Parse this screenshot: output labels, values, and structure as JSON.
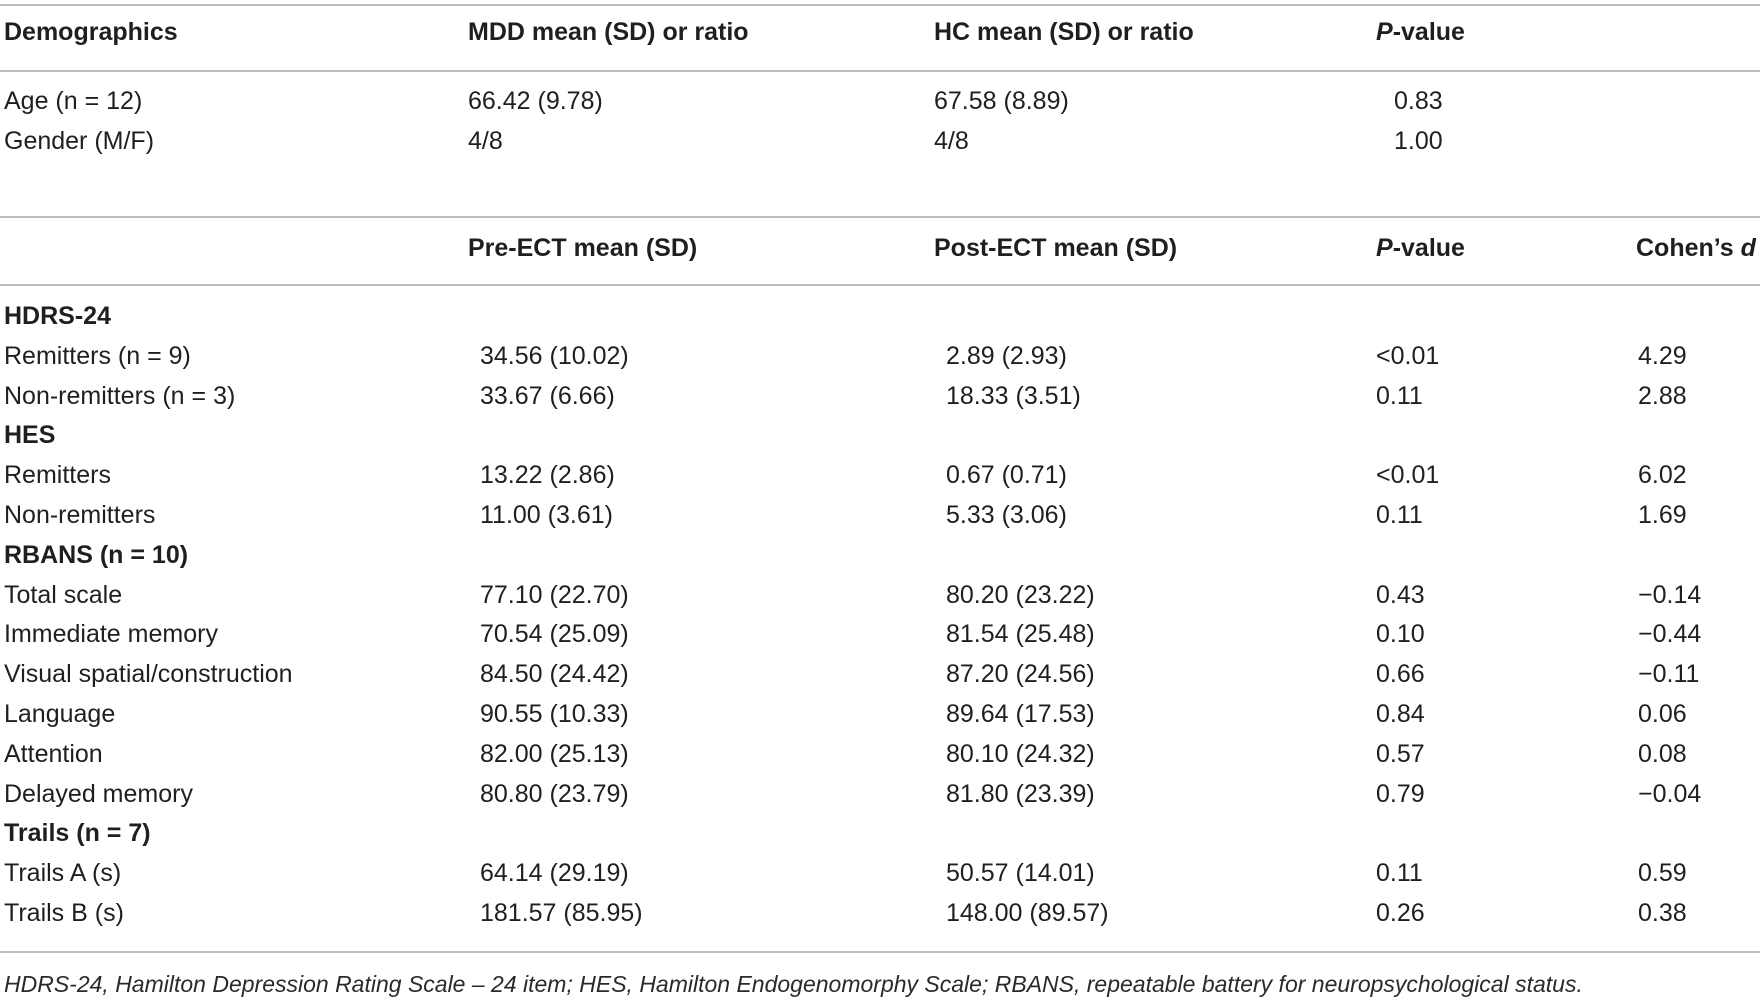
{
  "table1": {
    "header": {
      "col1": "Demographics",
      "col2": "MDD mean (SD) or ratio",
      "col3": "HC mean (SD) or ratio",
      "col4": "P-value"
    },
    "rows": [
      {
        "label": "Age (n = 12)",
        "c2": "66.42 (9.78)",
        "c3": "67.58 (8.89)",
        "c4": "0.83"
      },
      {
        "label": "Gender (M/F)",
        "c2": "4/8",
        "c3": "4/8",
        "c4": "1.00"
      }
    ]
  },
  "table2": {
    "header": {
      "col1": "",
      "col2": "Pre-ECT mean (SD)",
      "col3": "Post-ECT mean (SD)",
      "col4": "P-value",
      "col5": "Cohen's d"
    },
    "rows": [
      {
        "type": "section",
        "label": "HDRS-24"
      },
      {
        "type": "data",
        "label": "Remitters (n = 9)",
        "pre": "34.56 (10.02)",
        "post": "2.89 (2.93)",
        "p": "<0.01",
        "d": "4.29"
      },
      {
        "type": "data",
        "label": "Non-remitters (n = 3)",
        "pre": "33.67 (6.66)",
        "post": "18.33 (3.51)",
        "p": "0.11",
        "d": "2.88"
      },
      {
        "type": "section",
        "label": "HES"
      },
      {
        "type": "data",
        "label": "Remitters",
        "pre": "13.22 (2.86)",
        "post": "0.67 (0.71)",
        "p": "<0.01",
        "d": "6.02"
      },
      {
        "type": "data",
        "label": "Non-remitters",
        "pre": "11.00 (3.61)",
        "post": "5.33 (3.06)",
        "p": "0.11",
        "d": "1.69"
      },
      {
        "type": "section",
        "label": "RBANS (n = 10)"
      },
      {
        "type": "data",
        "label": "Total scale",
        "pre": "77.10 (22.70)",
        "post": "80.20 (23.22)",
        "p": "0.43",
        "d": "−0.14"
      },
      {
        "type": "data",
        "label": "Immediate memory",
        "pre": "70.54 (25.09)",
        "post": "81.54 (25.48)",
        "p": "0.10",
        "d": "−0.44"
      },
      {
        "type": "data",
        "label": "Visual spatial/construction",
        "pre": "84.50 (24.42)",
        "post": "87.20 (24.56)",
        "p": "0.66",
        "d": "−0.11"
      },
      {
        "type": "data",
        "label": "Language",
        "pre": "90.55 (10.33)",
        "post": "89.64 (17.53)",
        "p": "0.84",
        "d": "0.06"
      },
      {
        "type": "data",
        "label": "Attention",
        "pre": "82.00 (25.13)",
        "post": "80.10 (24.32)",
        "p": "0.57",
        "d": "0.08"
      },
      {
        "type": "data",
        "label": "Delayed memory",
        "pre": "80.80 (23.79)",
        "post": "81.80 (23.39)",
        "p": "0.79",
        "d": "−0.04"
      },
      {
        "type": "section",
        "label": "Trails (n = 7)"
      },
      {
        "type": "data",
        "label": "Trails A (s)",
        "pre": "64.14 (29.19)",
        "post": "50.57 (14.01)",
        "p": "0.11",
        "d": "0.59"
      },
      {
        "type": "data",
        "label": "Trails B (s)",
        "pre": "181.57 (85.95)",
        "post": "148.00 (89.57)",
        "p": "0.26",
        "d": "0.38"
      }
    ]
  },
  "footnote": "HDRS-24, Hamilton Depression Rating Scale – 24 item; HES, Hamilton Endogenomorphy Scale; RBANS, repeatable battery for neuropsychological status."
}
